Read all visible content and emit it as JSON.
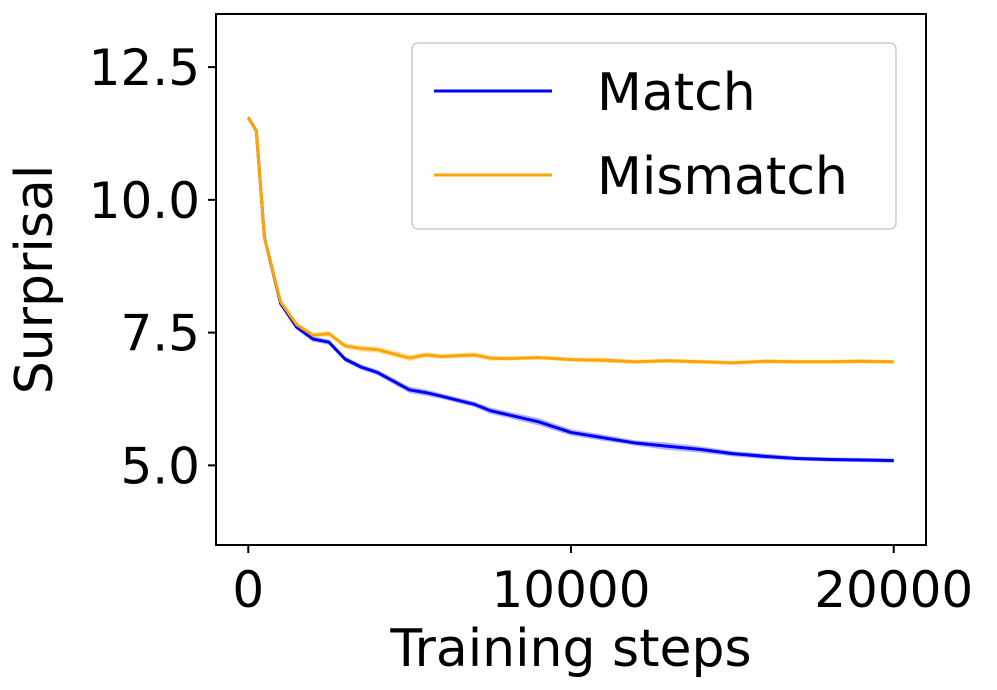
{
  "chart_data": {
    "type": "line",
    "title": "",
    "xlabel": "Training steps",
    "ylabel": "Surprisal",
    "xlim": [
      -1000,
      21000
    ],
    "ylim": [
      3.5,
      13.5
    ],
    "x_ticks": [
      0,
      10000,
      20000
    ],
    "x_tick_labels": [
      "0",
      "10000",
      "20000"
    ],
    "y_ticks": [
      5.0,
      7.5,
      10.0,
      12.5
    ],
    "y_tick_labels": [
      "5.0",
      "7.5",
      "10.0",
      "12.5"
    ],
    "grid": false,
    "legend_position": "upper right",
    "series": [
      {
        "name": "Match",
        "color": "#0000ff",
        "x": [
          0,
          250,
          500,
          1000,
          1500,
          2000,
          2500,
          3000,
          3500,
          4000,
          5000,
          5500,
          6000,
          7000,
          7500,
          8000,
          9000,
          10000,
          11000,
          12000,
          13000,
          14000,
          15000,
          16000,
          17000,
          18000,
          19000,
          20000
        ],
        "y": [
          11.55,
          11.3,
          9.3,
          8.05,
          7.6,
          7.38,
          7.32,
          7.0,
          6.85,
          6.75,
          6.42,
          6.37,
          6.3,
          6.15,
          6.03,
          5.96,
          5.82,
          5.62,
          5.52,
          5.42,
          5.36,
          5.3,
          5.22,
          5.17,
          5.13,
          5.11,
          5.1,
          5.09
        ],
        "band": [
          0.03,
          0.03,
          0.03,
          0.04,
          0.04,
          0.05,
          0.05,
          0.05,
          0.05,
          0.05,
          0.06,
          0.06,
          0.05,
          0.05,
          0.06,
          0.06,
          0.07,
          0.06,
          0.06,
          0.05,
          0.07,
          0.06,
          0.05,
          0.05,
          0.04,
          0.04,
          0.04,
          0.04
        ]
      },
      {
        "name": "Mismatch",
        "color": "#ffa500",
        "x": [
          0,
          250,
          500,
          1000,
          1500,
          2000,
          2500,
          3000,
          3500,
          4000,
          5000,
          5500,
          6000,
          7000,
          7500,
          8000,
          9000,
          10000,
          11000,
          12000,
          13000,
          14000,
          15000,
          16000,
          17000,
          18000,
          19000,
          20000
        ],
        "y": [
          11.55,
          11.3,
          9.3,
          8.08,
          7.65,
          7.45,
          7.48,
          7.25,
          7.2,
          7.18,
          7.02,
          7.08,
          7.05,
          7.08,
          7.02,
          7.01,
          7.03,
          6.99,
          6.98,
          6.95,
          6.97,
          6.95,
          6.93,
          6.96,
          6.95,
          6.95,
          6.96,
          6.95
        ],
        "band": [
          0.03,
          0.03,
          0.03,
          0.04,
          0.05,
          0.05,
          0.05,
          0.05,
          0.06,
          0.06,
          0.06,
          0.05,
          0.05,
          0.05,
          0.05,
          0.04,
          0.04,
          0.04,
          0.05,
          0.04,
          0.04,
          0.04,
          0.04,
          0.04,
          0.04,
          0.04,
          0.04,
          0.04
        ]
      }
    ]
  }
}
